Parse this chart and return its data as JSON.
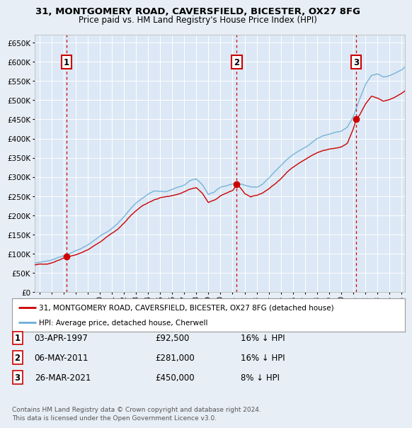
{
  "title_line1": "31, MONTGOMERY ROAD, CAVERSFIELD, BICESTER, OX27 8FG",
  "title_line2": "Price paid vs. HM Land Registry's House Price Index (HPI)",
  "sale_dates_num": [
    1997.25,
    2011.35,
    2021.23
  ],
  "sale_prices": [
    92500,
    281000,
    450000
  ],
  "sale_labels": [
    "1",
    "2",
    "3"
  ],
  "legend_line1": "31, MONTGOMERY ROAD, CAVERSFIELD, BICESTER, OX27 8FG (detached house)",
  "legend_line2": "HPI: Average price, detached house, Cherwell",
  "table_rows": [
    [
      "1",
      "03-APR-1997",
      "£92,500",
      "16% ↓ HPI"
    ],
    [
      "2",
      "06-MAY-2011",
      "£281,000",
      "16% ↓ HPI"
    ],
    [
      "3",
      "26-MAR-2021",
      "£450,000",
      "8% ↓ HPI"
    ]
  ],
  "footer": "Contains HM Land Registry data © Crown copyright and database right 2024.\nThis data is licensed under the Open Government Licence v3.0.",
  "hpi_color": "#6baed6",
  "price_color": "#cc0000",
  "bg_color": "#e8eef5",
  "plot_bg": "#dce8f5",
  "xmin": 1994.6,
  "xmax": 2025.3,
  "ymin": 0,
  "ymax": 670000,
  "yticks": [
    0,
    50000,
    100000,
    150000,
    200000,
    250000,
    300000,
    350000,
    400000,
    450000,
    500000,
    550000,
    600000,
    650000
  ],
  "hpi_keypoints": [
    [
      1994.6,
      75000
    ],
    [
      1995.0,
      78000
    ],
    [
      1995.5,
      80000
    ],
    [
      1996.0,
      84000
    ],
    [
      1996.5,
      89000
    ],
    [
      1997.0,
      94000
    ],
    [
      1997.5,
      100000
    ],
    [
      1998.0,
      107000
    ],
    [
      1998.5,
      113000
    ],
    [
      1999.0,
      122000
    ],
    [
      1999.5,
      133000
    ],
    [
      2000.0,
      145000
    ],
    [
      2000.5,
      156000
    ],
    [
      2001.0,
      167000
    ],
    [
      2001.5,
      178000
    ],
    [
      2002.0,
      196000
    ],
    [
      2002.5,
      215000
    ],
    [
      2003.0,
      232000
    ],
    [
      2003.5,
      244000
    ],
    [
      2004.0,
      255000
    ],
    [
      2004.5,
      263000
    ],
    [
      2005.0,
      262000
    ],
    [
      2005.5,
      262000
    ],
    [
      2006.0,
      267000
    ],
    [
      2006.5,
      273000
    ],
    [
      2007.0,
      280000
    ],
    [
      2007.5,
      290000
    ],
    [
      2008.0,
      295000
    ],
    [
      2008.5,
      280000
    ],
    [
      2009.0,
      255000
    ],
    [
      2009.5,
      262000
    ],
    [
      2010.0,
      273000
    ],
    [
      2010.5,
      278000
    ],
    [
      2011.0,
      282000
    ],
    [
      2011.5,
      285000
    ],
    [
      2012.0,
      278000
    ],
    [
      2012.5,
      274000
    ],
    [
      2013.0,
      275000
    ],
    [
      2013.5,
      282000
    ],
    [
      2014.0,
      296000
    ],
    [
      2014.5,
      315000
    ],
    [
      2015.0,
      330000
    ],
    [
      2015.5,
      345000
    ],
    [
      2016.0,
      358000
    ],
    [
      2016.5,
      368000
    ],
    [
      2017.0,
      378000
    ],
    [
      2017.5,
      388000
    ],
    [
      2018.0,
      400000
    ],
    [
      2018.5,
      408000
    ],
    [
      2019.0,
      412000
    ],
    [
      2019.5,
      415000
    ],
    [
      2020.0,
      418000
    ],
    [
      2020.5,
      428000
    ],
    [
      2021.0,
      458000
    ],
    [
      2021.5,
      500000
    ],
    [
      2022.0,
      540000
    ],
    [
      2022.5,
      565000
    ],
    [
      2023.0,
      568000
    ],
    [
      2023.5,
      560000
    ],
    [
      2024.0,
      565000
    ],
    [
      2024.5,
      572000
    ],
    [
      2025.0,
      580000
    ],
    [
      2025.3,
      588000
    ]
  ],
  "price_keypoints": [
    [
      1994.6,
      70000
    ],
    [
      1995.0,
      72000
    ],
    [
      1995.5,
      73000
    ],
    [
      1996.0,
      76000
    ],
    [
      1996.5,
      82000
    ],
    [
      1997.0,
      88000
    ],
    [
      1997.25,
      92500
    ],
    [
      1997.5,
      93000
    ],
    [
      1998.0,
      97000
    ],
    [
      1998.5,
      103000
    ],
    [
      1999.0,
      110000
    ],
    [
      1999.5,
      120000
    ],
    [
      2000.0,
      130000
    ],
    [
      2000.5,
      142000
    ],
    [
      2001.0,
      152000
    ],
    [
      2001.5,
      163000
    ],
    [
      2002.0,
      180000
    ],
    [
      2002.5,
      197000
    ],
    [
      2003.0,
      212000
    ],
    [
      2003.5,
      224000
    ],
    [
      2004.0,
      232000
    ],
    [
      2004.5,
      240000
    ],
    [
      2005.0,
      245000
    ],
    [
      2005.5,
      248000
    ],
    [
      2006.0,
      250000
    ],
    [
      2006.5,
      255000
    ],
    [
      2007.0,
      260000
    ],
    [
      2007.5,
      268000
    ],
    [
      2008.0,
      272000
    ],
    [
      2008.5,
      258000
    ],
    [
      2009.0,
      232000
    ],
    [
      2009.5,
      240000
    ],
    [
      2010.0,
      252000
    ],
    [
      2010.5,
      258000
    ],
    [
      2011.0,
      265000
    ],
    [
      2011.35,
      281000
    ],
    [
      2011.5,
      278000
    ],
    [
      2012.0,
      256000
    ],
    [
      2012.5,
      248000
    ],
    [
      2013.0,
      252000
    ],
    [
      2013.5,
      258000
    ],
    [
      2014.0,
      268000
    ],
    [
      2014.5,
      282000
    ],
    [
      2015.0,
      296000
    ],
    [
      2015.5,
      312000
    ],
    [
      2016.0,
      325000
    ],
    [
      2016.5,
      336000
    ],
    [
      2017.0,
      345000
    ],
    [
      2017.5,
      355000
    ],
    [
      2018.0,
      362000
    ],
    [
      2018.5,
      368000
    ],
    [
      2019.0,
      372000
    ],
    [
      2019.5,
      375000
    ],
    [
      2020.0,
      378000
    ],
    [
      2020.5,
      388000
    ],
    [
      2021.0,
      425000
    ],
    [
      2021.23,
      450000
    ],
    [
      2021.5,
      460000
    ],
    [
      2022.0,
      490000
    ],
    [
      2022.5,
      510000
    ],
    [
      2023.0,
      505000
    ],
    [
      2023.5,
      498000
    ],
    [
      2024.0,
      502000
    ],
    [
      2024.5,
      510000
    ],
    [
      2025.0,
      518000
    ],
    [
      2025.3,
      525000
    ]
  ]
}
